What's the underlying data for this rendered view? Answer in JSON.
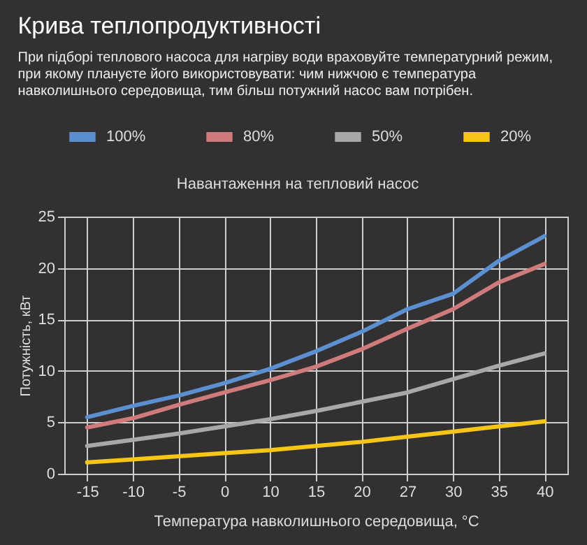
{
  "chart_data": {
    "type": "line",
    "title": "Крива теплопродуктивності",
    "subtitle": "При підборі теплового насоса для нагріву води враховуйте температурний режим, при якому плануєте його використовувати: чим нижчою є температура навколишнього середовища, тим більш потужний насос вам потрібен.",
    "legend_title": "Навантаження на тепловий насос",
    "legend": "top",
    "xlabel": "Температура навколишнього середовища, °C",
    "ylabel": "Потужність, кВт",
    "categories": [
      "-15",
      "-10",
      "-5",
      "0",
      "10",
      "15",
      "20",
      "27",
      "30",
      "35",
      "40"
    ],
    "ylim": [
      0,
      25
    ],
    "yticks": [
      0,
      5,
      10,
      15,
      20,
      25
    ],
    "grid": true,
    "series": [
      {
        "name": "100%",
        "color": "#5b8fd0",
        "values": [
          5.5,
          6.6,
          7.6,
          8.8,
          10.2,
          11.9,
          13.8,
          16.0,
          17.5,
          20.7,
          23.1
        ]
      },
      {
        "name": "80%",
        "color": "#d07b7b",
        "values": [
          4.5,
          5.4,
          6.7,
          7.9,
          9.1,
          10.4,
          12.1,
          14.1,
          16.0,
          18.6,
          20.4
        ]
      },
      {
        "name": "50%",
        "color": "#a8a8a8",
        "values": [
          2.7,
          3.3,
          3.9,
          4.6,
          5.3,
          6.1,
          7.0,
          7.9,
          9.2,
          10.5,
          11.7
        ]
      },
      {
        "name": "20%",
        "color": "#f5c518",
        "values": [
          1.1,
          1.4,
          1.7,
          2.0,
          2.3,
          2.7,
          3.1,
          3.6,
          4.1,
          4.6,
          5.1
        ]
      }
    ]
  }
}
